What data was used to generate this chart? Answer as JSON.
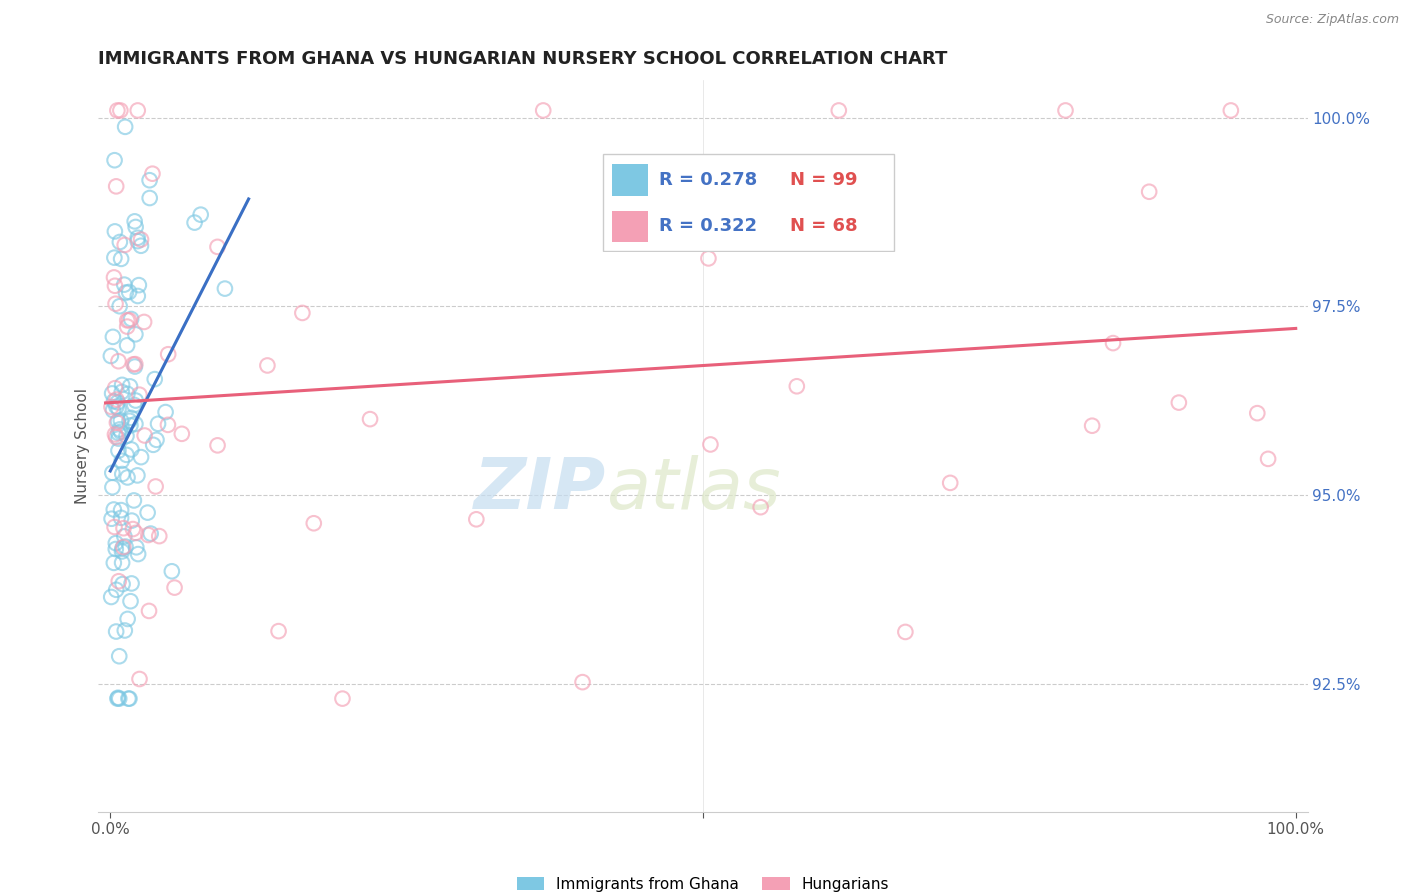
{
  "title": "IMMIGRANTS FROM GHANA VS HUNGARIAN NURSERY SCHOOL CORRELATION CHART",
  "source": "Source: ZipAtlas.com",
  "ylabel": "Nursery School",
  "ytick_labels": [
    "92.5%",
    "95.0%",
    "97.5%",
    "100.0%"
  ],
  "ytick_values": [
    0.925,
    0.95,
    0.975,
    1.0
  ],
  "legend_entries": [
    {
      "label": "Immigrants from Ghana",
      "R": "0.278",
      "N": "99",
      "color": "#7ec8e3"
    },
    {
      "label": "Hungarians",
      "R": "0.322",
      "N": "68",
      "color": "#f4a0b5"
    }
  ],
  "blue_color": "#7ec8e3",
  "pink_color": "#f4a0b5",
  "blue_line_color": "#3a6fc4",
  "pink_line_color": "#e8607a",
  "watermark_zip": "ZIP",
  "watermark_atlas": "atlas"
}
